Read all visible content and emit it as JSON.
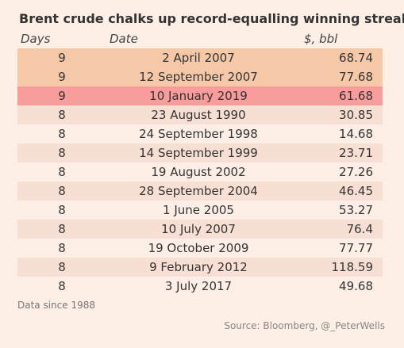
{
  "chart_data": {
    "type": "table",
    "title": "Brent crude chalks up record-equalling winning streak",
    "columns": [
      "Days",
      "Date",
      "$, bbl"
    ],
    "rows": [
      {
        "days": "9",
        "date": "2 April 2007",
        "price": "68.74",
        "highlight": "record"
      },
      {
        "days": "9",
        "date": "12 September 2007",
        "price": "77.68",
        "highlight": "record"
      },
      {
        "days": "9",
        "date": "10 January 2019",
        "price": "61.68",
        "highlight": "current"
      },
      {
        "days": "8",
        "date": "23 August 1990",
        "price": "30.85",
        "highlight": "none"
      },
      {
        "days": "8",
        "date": "24 September 1998",
        "price": "14.68",
        "highlight": "none"
      },
      {
        "days": "8",
        "date": "14 September 1999",
        "price": "23.71",
        "highlight": "none"
      },
      {
        "days": "8",
        "date": "19 August 2002",
        "price": "27.26",
        "highlight": "none"
      },
      {
        "days": "8",
        "date": "28 September 2004",
        "price": "46.45",
        "highlight": "none"
      },
      {
        "days": "8",
        "date": "1 June 2005",
        "price": "53.27",
        "highlight": "none"
      },
      {
        "days": "8",
        "date": "10 July 2007",
        "price": "76.4",
        "highlight": "none"
      },
      {
        "days": "8",
        "date": "19 October 2009",
        "price": "77.77",
        "highlight": "none"
      },
      {
        "days": "8",
        "date": "9 February 2012",
        "price": "118.59",
        "highlight": "none"
      },
      {
        "days": "8",
        "date": "3 July 2017",
        "price": "49.68",
        "highlight": "none"
      }
    ],
    "footnote": "Data since 1988",
    "source": "Source: Bloomberg, @_PeterWells"
  },
  "colors": {
    "background": "#fdeee6",
    "record": "#f5c8a8",
    "current": "#f99c9c",
    "band": "#f8dfd3"
  }
}
